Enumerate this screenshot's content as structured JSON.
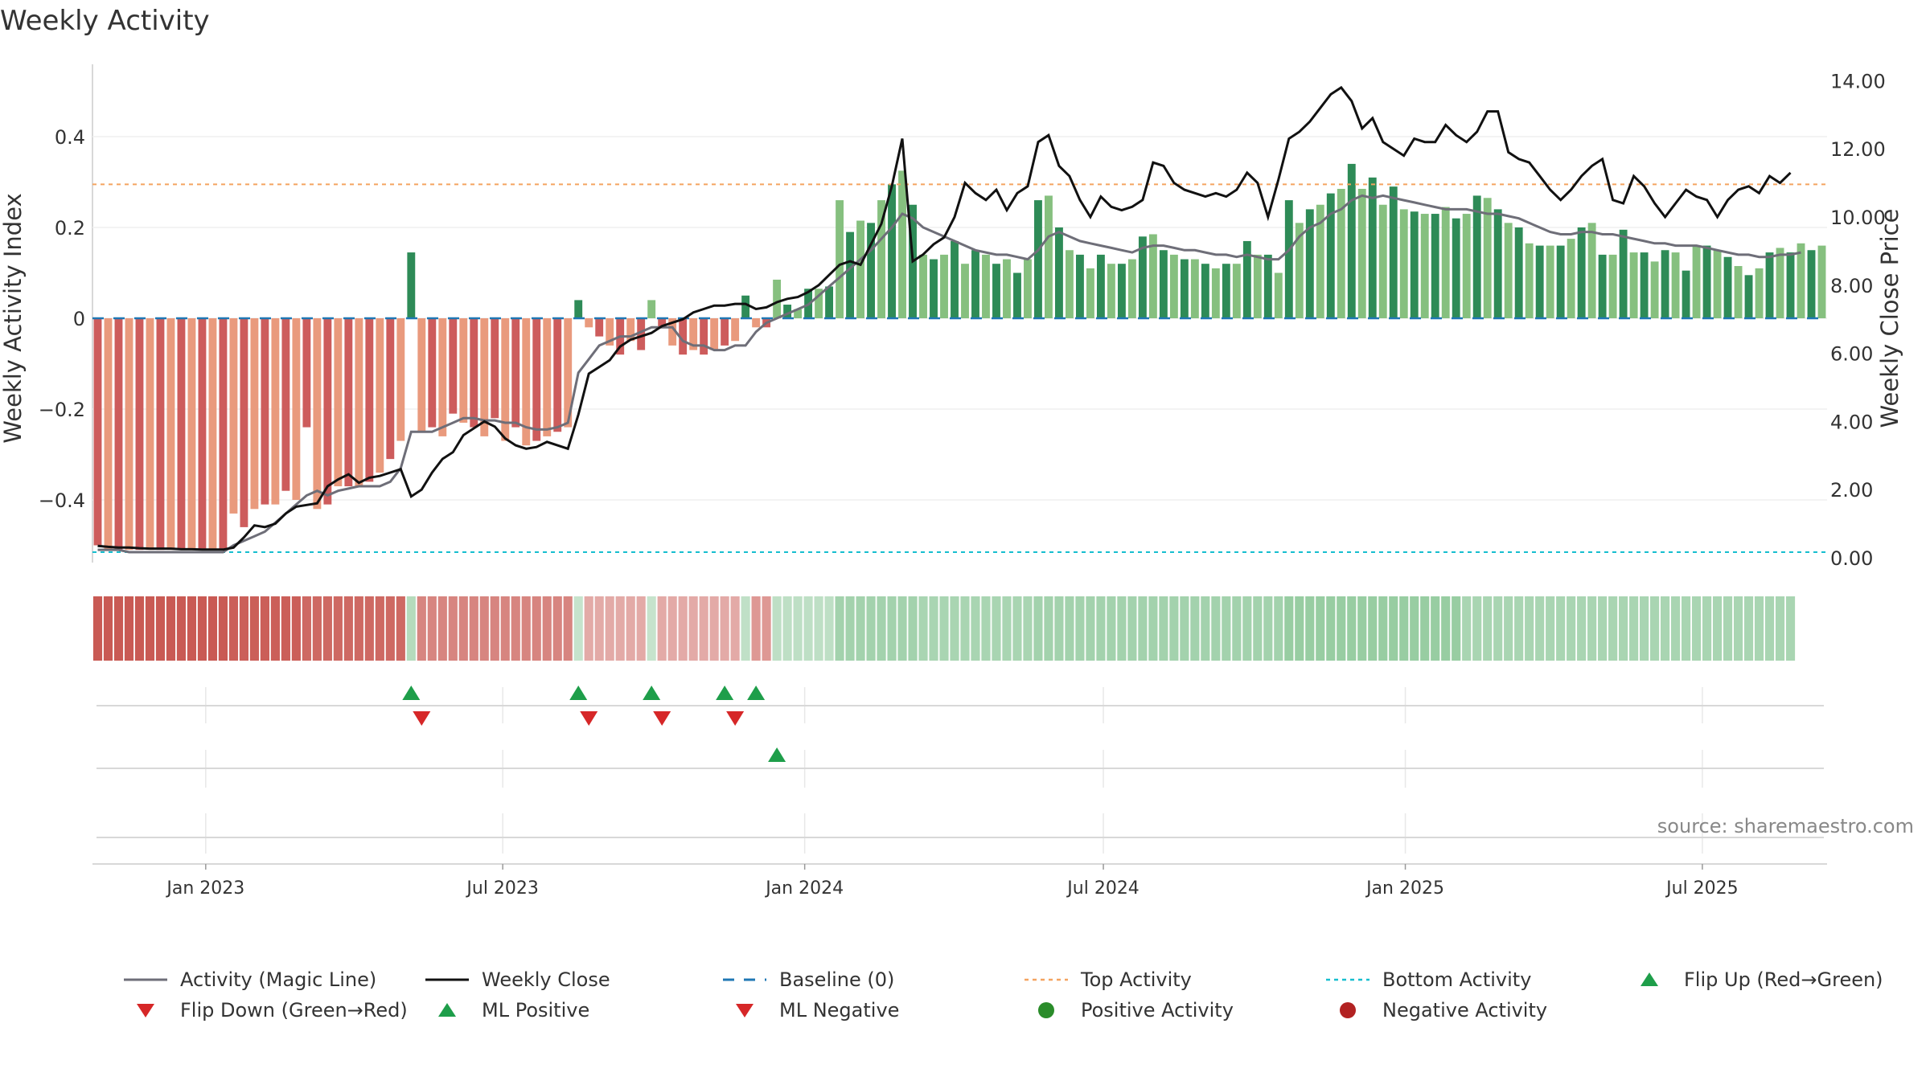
{
  "title": "Weekly Activity",
  "source": "source: sharemaestro.com",
  "colors": {
    "strong_green": "#2e8b57",
    "light_green": "#86c07f",
    "strong_red": "#cd5c5c",
    "light_red": "#e99a7d",
    "magic_line": "#6e6e78",
    "close_line": "#111111",
    "baseline": "#1f77b4",
    "top": "#f4a460",
    "bottom": "#17becf",
    "flip_up": "#1e9e4a",
    "flip_down": "#d62728"
  },
  "chart_data": {
    "type": "bar",
    "xlabel": "",
    "ylabel": "Weekly Activity Index",
    "y2label": "Weekly Close Price",
    "ylim": [
      -0.52,
      0.55
    ],
    "y2lim": [
      0,
      14.5
    ],
    "yticks": [
      "0.4",
      "0.2",
      "0",
      "−0.2",
      "−0.4"
    ],
    "y2ticks": [
      "14.00",
      "12.00",
      "10.00",
      "8.00",
      "6.00",
      "4.00",
      "2.00",
      "0.00"
    ],
    "xticks": [
      "Jan 2023",
      "Jul 2023",
      "Jan 2024",
      "Jul 2024",
      "Jan 2025",
      "Jul 2025"
    ],
    "x_start": "2022-10-24",
    "x_end": "2025-09-15",
    "top_activity": 0.295,
    "bottom_activity": -0.515,
    "activity": [
      -0.5,
      -0.51,
      -0.51,
      -0.51,
      -0.51,
      -0.51,
      -0.51,
      -0.51,
      -0.51,
      -0.51,
      -0.51,
      -0.51,
      -0.51,
      -0.43,
      -0.46,
      -0.42,
      -0.41,
      -0.41,
      -0.38,
      -0.4,
      -0.24,
      -0.42,
      -0.41,
      -0.37,
      -0.37,
      -0.37,
      -0.36,
      -0.34,
      -0.31,
      -0.27,
      0.145,
      -0.25,
      -0.24,
      -0.26,
      -0.21,
      -0.23,
      -0.24,
      -0.26,
      -0.22,
      -0.27,
      -0.24,
      -0.28,
      -0.27,
      -0.26,
      -0.25,
      -0.24,
      0.04,
      -0.02,
      -0.04,
      -0.06,
      -0.08,
      -0.05,
      -0.07,
      0.04,
      -0.02,
      -0.06,
      -0.08,
      -0.07,
      -0.08,
      -0.07,
      -0.06,
      -0.05,
      0.05,
      -0.02,
      -0.02,
      0.085,
      0.03,
      0.02,
      0.065,
      0.065,
      0.07,
      0.26,
      0.19,
      0.215,
      0.21,
      0.26,
      0.295,
      0.325,
      0.25,
      0.14,
      0.13,
      0.14,
      0.17,
      0.12,
      0.15,
      0.14,
      0.12,
      0.13,
      0.1,
      0.13,
      0.26,
      0.27,
      0.2,
      0.15,
      0.14,
      0.11,
      0.14,
      0.12,
      0.12,
      0.13,
      0.18,
      0.185,
      0.15,
      0.14,
      0.13,
      0.13,
      0.12,
      0.11,
      0.12,
      0.12,
      0.17,
      0.14,
      0.14,
      0.1,
      0.26,
      0.21,
      0.24,
      0.25,
      0.275,
      0.285,
      0.34,
      0.285,
      0.31,
      0.25,
      0.29,
      0.24,
      0.235,
      0.23,
      0.23,
      0.245,
      0.22,
      0.23,
      0.27,
      0.265,
      0.24,
      0.21,
      0.2,
      0.165,
      0.16,
      0.16,
      0.16,
      0.175,
      0.2,
      0.21,
      0.14,
      0.14,
      0.195,
      0.145,
      0.145,
      0.125,
      0.15,
      0.145,
      0.105,
      0.16,
      0.16,
      0.15,
      0.135,
      0.115,
      0.095,
      0.11,
      0.145,
      0.155,
      0.145,
      0.165,
      0.15,
      0.16
    ],
    "magic_line": [
      -0.51,
      -0.51,
      -0.51,
      -0.515,
      -0.515,
      -0.515,
      -0.515,
      -0.515,
      -0.515,
      -0.515,
      -0.515,
      -0.515,
      -0.515,
      -0.5,
      -0.49,
      -0.48,
      -0.47,
      -0.45,
      -0.43,
      -0.41,
      -0.39,
      -0.38,
      -0.39,
      -0.38,
      -0.375,
      -0.37,
      -0.37,
      -0.37,
      -0.36,
      -0.33,
      -0.25,
      -0.25,
      -0.25,
      -0.24,
      -0.23,
      -0.22,
      -0.22,
      -0.225,
      -0.225,
      -0.23,
      -0.23,
      -0.24,
      -0.245,
      -0.245,
      -0.24,
      -0.23,
      -0.12,
      -0.09,
      -0.06,
      -0.05,
      -0.04,
      -0.04,
      -0.03,
      -0.02,
      -0.02,
      -0.02,
      -0.05,
      -0.06,
      -0.06,
      -0.07,
      -0.07,
      -0.06,
      -0.06,
      -0.03,
      -0.01,
      0,
      0.01,
      0.02,
      0.03,
      0.05,
      0.07,
      0.09,
      0.11,
      0.13,
      0.15,
      0.175,
      0.2,
      0.23,
      0.22,
      0.2,
      0.19,
      0.18,
      0.17,
      0.16,
      0.15,
      0.145,
      0.14,
      0.14,
      0.135,
      0.13,
      0.15,
      0.18,
      0.19,
      0.18,
      0.17,
      0.165,
      0.16,
      0.155,
      0.15,
      0.145,
      0.155,
      0.16,
      0.16,
      0.155,
      0.15,
      0.15,
      0.145,
      0.14,
      0.14,
      0.135,
      0.14,
      0.135,
      0.13,
      0.13,
      0.15,
      0.18,
      0.2,
      0.21,
      0.23,
      0.24,
      0.26,
      0.27,
      0.265,
      0.27,
      0.265,
      0.26,
      0.255,
      0.25,
      0.245,
      0.24,
      0.24,
      0.24,
      0.235,
      0.23,
      0.23,
      0.225,
      0.22,
      0.21,
      0.2,
      0.19,
      0.185,
      0.185,
      0.19,
      0.19,
      0.185,
      0.185,
      0.18,
      0.175,
      0.17,
      0.165,
      0.165,
      0.16,
      0.16,
      0.16,
      0.155,
      0.15,
      0.145,
      0.14,
      0.14,
      0.135,
      0.135,
      0.14,
      0.14,
      0.145
    ],
    "close": [
      0.35,
      0.32,
      0.3,
      0.3,
      0.28,
      0.27,
      0.27,
      0.27,
      0.25,
      0.25,
      0.24,
      0.24,
      0.24,
      0.3,
      0.6,
      0.95,
      0.9,
      1.0,
      1.3,
      1.5,
      1.55,
      1.6,
      2.1,
      2.3,
      2.45,
      2.2,
      2.35,
      2.4,
      2.5,
      2.6,
      1.8,
      2.0,
      2.5,
      2.9,
      3.1,
      3.6,
      3.8,
      4.0,
      3.85,
      3.5,
      3.3,
      3.2,
      3.25,
      3.4,
      3.3,
      3.2,
      4.2,
      5.4,
      5.6,
      5.8,
      6.2,
      6.4,
      6.5,
      6.6,
      6.8,
      6.9,
      7.0,
      7.2,
      7.3,
      7.4,
      7.4,
      7.45,
      7.45,
      7.3,
      7.35,
      7.5,
      7.6,
      7.65,
      7.8,
      8.0,
      8.3,
      8.6,
      8.7,
      8.6,
      9.2,
      9.8,
      10.9,
      12.3,
      8.7,
      8.9,
      9.2,
      9.4,
      10.0,
      11.0,
      10.7,
      10.5,
      10.8,
      10.2,
      10.7,
      10.9,
      12.2,
      12.4,
      11.5,
      11.2,
      10.5,
      10.0,
      10.6,
      10.3,
      10.2,
      10.3,
      10.5,
      11.6,
      11.5,
      11.0,
      10.8,
      10.7,
      10.6,
      10.7,
      10.6,
      10.8,
      11.3,
      11.0,
      10.0,
      11.1,
      12.3,
      12.5,
      12.8,
      13.2,
      13.6,
      13.8,
      13.4,
      12.6,
      12.9,
      12.2,
      12.0,
      11.8,
      12.3,
      12.2,
      12.2,
      12.7,
      12.4,
      12.2,
      12.5,
      13.1,
      13.1,
      11.9,
      11.7,
      11.6,
      11.2,
      10.8,
      10.5,
      10.8,
      11.2,
      11.5,
      11.7,
      10.5,
      10.4,
      11.2,
      10.9,
      10.4,
      10.0,
      10.4,
      10.8,
      10.6,
      10.5,
      10.0,
      10.5,
      10.8,
      10.9,
      10.7,
      11.2,
      11.0,
      11.3
    ],
    "heat_bins": [
      0.63,
      0.63,
      0.63,
      0.63,
      0.63,
      0.63,
      0.63,
      0.63,
      0.63,
      0.63,
      0.63,
      0.63,
      0.63,
      0.6,
      0.6,
      0.6,
      0.6,
      0.6,
      0.6,
      0.6,
      0.55,
      0.55,
      0.55,
      0.55,
      0.55,
      0.55,
      0.55,
      0.55,
      0.55,
      0.55,
      -0.3,
      0.4,
      0.4,
      0.4,
      0.4,
      0.4,
      0.4,
      0.4,
      0.4,
      0.4,
      0.4,
      0.4,
      0.4,
      0.4,
      0.4,
      0.4,
      -0.15,
      0.2,
      0.2,
      0.2,
      0.2,
      0.2,
      0.2,
      -0.15,
      0.2,
      0.2,
      0.2,
      0.2,
      0.2,
      0.2,
      0.2,
      0.2,
      -0.2,
      0.3,
      0.3,
      -0.22,
      -0.22,
      -0.22,
      -0.22,
      -0.22,
      -0.22,
      -0.45,
      -0.45,
      -0.45,
      -0.45,
      -0.45,
      -0.45,
      -0.45,
      -0.45,
      -0.4,
      -0.4,
      -0.4,
      -0.4,
      -0.4,
      -0.4,
      -0.4,
      -0.4,
      -0.4,
      -0.4,
      -0.4,
      -0.45,
      -0.45,
      -0.45,
      -0.45,
      -0.45,
      -0.45,
      -0.45,
      -0.45,
      -0.45,
      -0.45,
      -0.45,
      -0.45,
      -0.45,
      -0.45,
      -0.45,
      -0.45,
      -0.45,
      -0.45,
      -0.45,
      -0.45,
      -0.45,
      -0.45,
      -0.45,
      -0.45,
      -0.55,
      -0.55,
      -0.55,
      -0.55,
      -0.55,
      -0.55,
      -0.55,
      -0.55,
      -0.55,
      -0.55,
      -0.55,
      -0.55,
      -0.55,
      -0.55,
      -0.55,
      -0.55,
      -0.55,
      -0.4,
      -0.4,
      -0.4,
      -0.4,
      -0.4,
      -0.4,
      -0.4,
      -0.4,
      -0.4,
      -0.4,
      -0.4,
      -0.4,
      -0.4,
      -0.4,
      -0.4,
      -0.4,
      -0.4,
      -0.4,
      -0.4,
      -0.4,
      -0.4,
      -0.4,
      -0.4,
      -0.4,
      -0.4,
      -0.4,
      -0.4,
      -0.4,
      -0.4,
      -0.4,
      -0.4,
      -0.4
    ],
    "flip_up_weeks": [
      30,
      46,
      53,
      60,
      63
    ],
    "flip_down_weeks": [
      31,
      47,
      54,
      61
    ],
    "ml_positive_weeks": [
      65
    ]
  },
  "legend": [
    {
      "label": "Activity (Magic Line)",
      "kind": "line",
      "color": "#6e6e78"
    },
    {
      "label": "Weekly Close",
      "kind": "line",
      "color": "#111111"
    },
    {
      "label": "Baseline (0)",
      "kind": "dash",
      "color": "#1f77b4"
    },
    {
      "label": "Top Activity",
      "kind": "dot",
      "color": "#f4a460"
    },
    {
      "label": "Bottom Activity",
      "kind": "dot",
      "color": "#17becf"
    },
    {
      "label": "Flip Up (Red→Green)",
      "kind": "tri-up",
      "color": "#1e9e4a"
    },
    {
      "label": "Flip Down (Green→Red)",
      "kind": "tri-down",
      "color": "#d62728"
    },
    {
      "label": "ML Positive",
      "kind": "tri-up",
      "color": "#1e9e4a"
    },
    {
      "label": "ML Negative",
      "kind": "tri-down",
      "color": "#d62728"
    },
    {
      "label": "Positive Activity",
      "kind": "circle",
      "color": "#2a8c2a"
    },
    {
      "label": "Negative Activity",
      "kind": "circle",
      "color": "#b22222"
    }
  ]
}
